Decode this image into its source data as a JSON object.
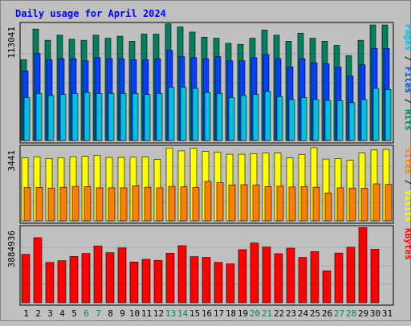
{
  "chart_data": [
    {
      "type": "bar",
      "title": "Daily usage for April 2024",
      "categories": [
        "1",
        "2",
        "3",
        "4",
        "5",
        "6",
        "7",
        "8",
        "9",
        "10",
        "11",
        "12",
        "13",
        "14",
        "15",
        "16",
        "17",
        "18",
        "19",
        "20",
        "21",
        "22",
        "23",
        "24",
        "25",
        "26",
        "27",
        "28",
        "29",
        "30",
        "31"
      ],
      "weekend_days": [
        "6",
        "7",
        "13",
        "14",
        "20",
        "21",
        "27",
        "28"
      ],
      "ymax_label": "113041",
      "ylim": [
        0,
        113041
      ],
      "axis_legend": [
        {
          "text": "Pages",
          "color": "#00c0e0"
        },
        {
          "text": "Files",
          "color": "#0040ff"
        },
        {
          "text": "Hits",
          "color": "#008060"
        }
      ],
      "series": [
        {
          "name": "Hits",
          "color": "#008060",
          "values": [
            79000,
            109000,
            98000,
            103000,
            99000,
            98000,
            103000,
            100000,
            102000,
            97000,
            104000,
            104000,
            114000,
            111000,
            106000,
            101000,
            100000,
            95000,
            94000,
            100000,
            108000,
            103000,
            97000,
            105000,
            100000,
            97000,
            93000,
            83000,
            98000,
            113000,
            113000
          ]
        },
        {
          "name": "Files",
          "color": "#0040ff",
          "values": [
            68000,
            85000,
            79000,
            80000,
            80000,
            78000,
            81000,
            80000,
            80000,
            79000,
            79000,
            80000,
            88000,
            82000,
            81000,
            80000,
            82000,
            78000,
            78000,
            81000,
            84000,
            80000,
            72000,
            80000,
            76000,
            75000,
            72000,
            63000,
            74000,
            90000,
            90000
          ]
        },
        {
          "name": "Pages",
          "color": "#00c0e0",
          "values": [
            42000,
            46000,
            44000,
            45000,
            46000,
            47000,
            46000,
            46000,
            46000,
            46000,
            45000,
            46000,
            52000,
            52000,
            51000,
            47000,
            46000,
            42000,
            44000,
            45000,
            48000,
            43000,
            40000,
            42000,
            40000,
            39000,
            39000,
            37000,
            40000,
            51000,
            50000
          ]
        }
      ]
    },
    {
      "type": "bar",
      "categories": [
        "1",
        "2",
        "3",
        "4",
        "5",
        "6",
        "7",
        "8",
        "9",
        "10",
        "11",
        "12",
        "13",
        "14",
        "15",
        "16",
        "17",
        "18",
        "19",
        "20",
        "21",
        "22",
        "23",
        "24",
        "25",
        "26",
        "27",
        "28",
        "29",
        "30",
        "31"
      ],
      "ymax_label": "3441",
      "ylim": [
        0,
        3441
      ],
      "axis_legend": [
        {
          "text": "Sites",
          "color": "#ff8000"
        },
        {
          "text": "Visits",
          "color": "#ffff00"
        }
      ],
      "series": [
        {
          "name": "Visits",
          "color": "#ffff00",
          "values": [
            3000,
            3050,
            2970,
            2990,
            3050,
            3070,
            3120,
            3020,
            3020,
            3030,
            3040,
            2920,
            3470,
            3330,
            3460,
            3300,
            3270,
            3170,
            3170,
            3200,
            3230,
            3230,
            3000,
            3160,
            3480,
            2940,
            2970,
            2880,
            3230,
            3370,
            3400
          ]
        },
        {
          "name": "Sites",
          "color": "#ff8000",
          "values": [
            1580,
            1590,
            1560,
            1600,
            1640,
            1630,
            1570,
            1570,
            1570,
            1670,
            1600,
            1570,
            1640,
            1620,
            1580,
            1880,
            1820,
            1710,
            1720,
            1700,
            1630,
            1650,
            1610,
            1630,
            1600,
            1330,
            1570,
            1560,
            1550,
            1760,
            1730
          ]
        }
      ]
    },
    {
      "type": "bar",
      "categories": [
        "1",
        "2",
        "3",
        "4",
        "5",
        "6",
        "7",
        "8",
        "9",
        "10",
        "11",
        "12",
        "13",
        "14",
        "15",
        "16",
        "17",
        "18",
        "19",
        "20",
        "21",
        "22",
        "23",
        "24",
        "25",
        "26",
        "27",
        "28",
        "29",
        "30",
        "31"
      ],
      "ymax_label": "3884936",
      "ylim": [
        0,
        3884936
      ],
      "axis_legend": [
        {
          "text": "KBytes",
          "color": "#ff0000"
        }
      ],
      "series": [
        {
          "name": "KBytes",
          "color": "#ff0000",
          "values": [
            2540000,
            3420000,
            2120000,
            2210000,
            2430000,
            2590000,
            2980000,
            2630000,
            2880000,
            2140000,
            2280000,
            2230000,
            2600000,
            3000000,
            2420000,
            2380000,
            2120000,
            2040000,
            2790000,
            3140000,
            2930000,
            2580000,
            2870000,
            2380000,
            2690000,
            1680000,
            2610000,
            2920000,
            3950000,
            2810000,
            0
          ]
        }
      ]
    }
  ]
}
